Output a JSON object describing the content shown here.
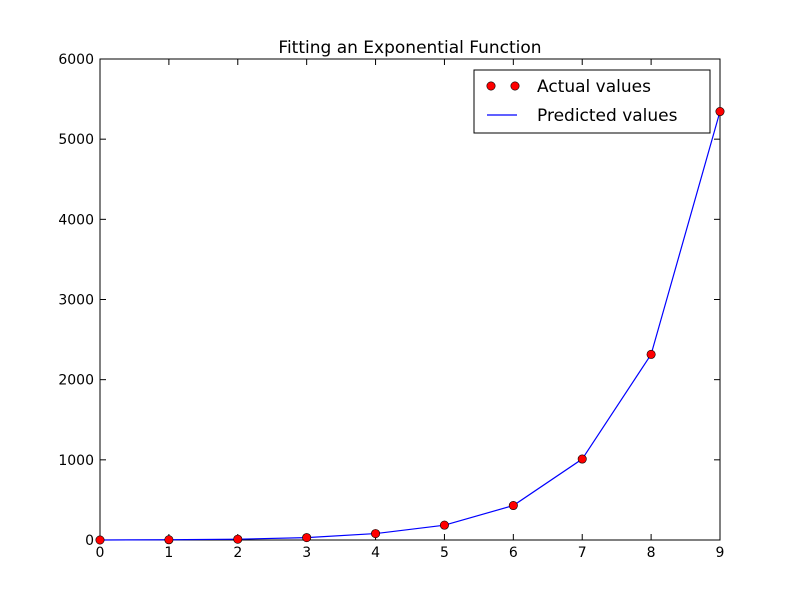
{
  "chart_data": {
    "type": "line",
    "title": "Fitting an Exponential Function",
    "xlabel": "",
    "ylabel": "",
    "xlim": [
      0,
      9
    ],
    "ylim": [
      0,
      6000
    ],
    "xticks": [
      "0",
      "1",
      "2",
      "3",
      "4",
      "5",
      "6",
      "7",
      "8",
      "9"
    ],
    "yticks": [
      "0",
      "1000",
      "2000",
      "3000",
      "4000",
      "5000",
      "6000"
    ],
    "grid": false,
    "legend_position": "top-right",
    "x": [
      0,
      1,
      2,
      3,
      4,
      5,
      6,
      7,
      8,
      9
    ],
    "series": [
      {
        "name": "Actual values",
        "style": "markers",
        "color": "#ff0000",
        "values": [
          0,
          3,
          10,
          30,
          80,
          185,
          430,
          1010,
          2315,
          5345
        ]
      },
      {
        "name": "Predicted values",
        "style": "line",
        "color": "#0000ff",
        "values": [
          0,
          3,
          10,
          30,
          80,
          185,
          430,
          1010,
          2315,
          5345
        ]
      }
    ]
  }
}
